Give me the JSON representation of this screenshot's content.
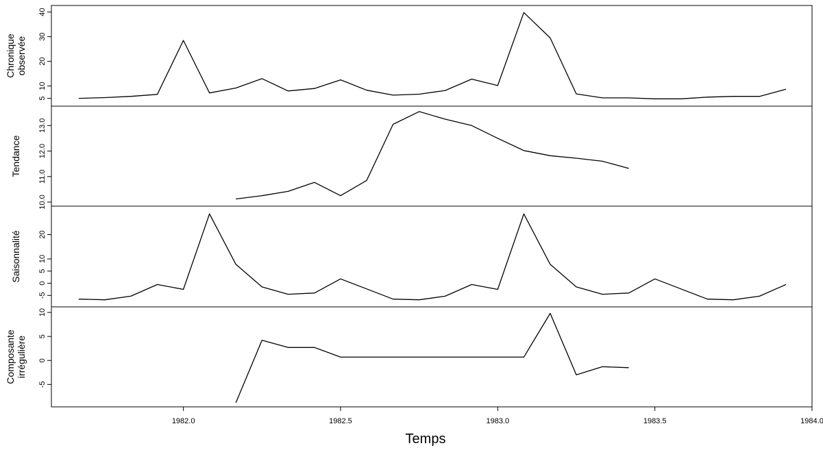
{
  "chart_data": {
    "type": "line",
    "xlabel": "Temps",
    "xlim": [
      1981.58,
      1984.0
    ],
    "x_ticks": [
      {
        "value": 1982.0,
        "label": "1982.0"
      },
      {
        "value": 1982.5,
        "label": "1982.5"
      },
      {
        "value": 1983.0,
        "label": "1983.0"
      },
      {
        "value": 1983.5,
        "label": "1983.5"
      },
      {
        "value": 1984.0,
        "label": "1984.0"
      }
    ],
    "panels": [
      {
        "name": "observed",
        "ylabel": [
          "Chronique",
          "observée"
        ],
        "ylim": [
          3.5,
          41
        ],
        "y_ticks": [
          {
            "value": 5,
            "label": "5"
          },
          {
            "value": 10,
            "label": "10"
          },
          {
            "value": 20,
            "label": "20"
          },
          {
            "value": 30,
            "label": "30"
          },
          {
            "value": 40,
            "label": "40"
          }
        ],
        "x": [
          1981.667,
          1981.75,
          1981.833,
          1981.917,
          1982.0,
          1982.083,
          1982.167,
          1982.25,
          1982.333,
          1982.417,
          1982.5,
          1982.583,
          1982.667,
          1982.75,
          1982.833,
          1982.917,
          1983.0,
          1983.083,
          1983.167,
          1983.25,
          1983.333,
          1983.417,
          1983.5,
          1983.583,
          1983.667,
          1983.75,
          1983.833,
          1983.917
        ],
        "values": [
          5,
          5.3,
          5.8,
          6.6,
          28.5,
          7.2,
          9.2,
          13,
          8,
          9,
          12.5,
          8.3,
          6.3,
          6.7,
          8.2,
          12.8,
          10.2,
          39.8,
          29.5,
          6.8,
          5.2,
          5.2,
          4.8,
          4.8,
          5.5,
          5.8,
          5.8,
          8.7
        ]
      },
      {
        "name": "trend",
        "ylabel": [
          "Tendance"
        ],
        "ylim": [
          10.0,
          13.6
        ],
        "y_ticks": [
          {
            "value": 10.0,
            "label": "10.0"
          },
          {
            "value": 11.0,
            "label": "11.0"
          },
          {
            "value": 12.0,
            "label": "12.0"
          },
          {
            "value": 13.0,
            "label": "13.0"
          }
        ],
        "x": [
          1982.167,
          1982.25,
          1982.333,
          1982.417,
          1982.5,
          1982.583,
          1982.667,
          1982.75,
          1982.833,
          1982.917,
          1983.0,
          1983.083,
          1983.167,
          1983.25,
          1983.333,
          1983.417
        ],
        "values": [
          10.12,
          10.25,
          10.42,
          10.77,
          10.25,
          10.85,
          13.05,
          13.55,
          13.25,
          13.0,
          12.5,
          12.02,
          11.82,
          11.72,
          11.6,
          11.32
        ]
      },
      {
        "name": "seasonal",
        "ylabel": [
          "Saisonnalité"
        ],
        "ylim": [
          -8,
          30
        ],
        "y_ticks": [
          {
            "value": -5,
            "label": "-5"
          },
          {
            "value": 0,
            "label": "0"
          },
          {
            "value": 5,
            "label": "5"
          },
          {
            "value": 10,
            "label": "10"
          },
          {
            "value": 20,
            "label": "20"
          }
        ],
        "x": [
          1981.667,
          1981.75,
          1981.833,
          1981.917,
          1982.0,
          1982.083,
          1982.167,
          1982.25,
          1982.333,
          1982.417,
          1982.5,
          1982.583,
          1982.667,
          1982.75,
          1982.833,
          1982.917,
          1983.0,
          1983.083,
          1983.167,
          1983.25,
          1983.333,
          1983.417,
          1983.5,
          1983.583,
          1983.667,
          1983.75,
          1983.833,
          1983.917
        ],
        "values": [
          -6.5,
          -6.8,
          -5.3,
          -0.5,
          -2.5,
          28.5,
          7.8,
          -1.5,
          -4.5,
          -4.0,
          1.8,
          -2.3,
          -6.5,
          -6.8,
          -5.3,
          -0.5,
          -2.5,
          28.5,
          7.8,
          -1.5,
          -4.5,
          -4.0,
          1.8,
          -2.3,
          -6.5,
          -6.8,
          -5.3,
          -0.5
        ]
      },
      {
        "name": "irregular",
        "ylabel": [
          "Composante",
          "irrégulière"
        ],
        "ylim": [
          -8.8,
          10.3
        ],
        "y_ticks": [
          {
            "value": -5,
            "label": "-5"
          },
          {
            "value": 0,
            "label": "0"
          },
          {
            "value": 5,
            "label": "5"
          },
          {
            "value": 10,
            "label": "10"
          }
        ],
        "x": [
          1982.167,
          1982.25,
          1982.333,
          1982.417,
          1982.5,
          1982.583,
          1982.667,
          1982.75,
          1982.833,
          1982.917,
          1983.0,
          1983.083,
          1983.167,
          1983.25,
          1983.333,
          1983.417
        ],
        "values": [
          -8.8,
          4.2,
          2.7,
          2.7,
          0.7,
          0.7,
          0.7,
          0.7,
          0.7,
          0.7,
          0.7,
          0.7,
          9.8,
          -3.0,
          -1.3,
          -1.5
        ]
      }
    ]
  }
}
